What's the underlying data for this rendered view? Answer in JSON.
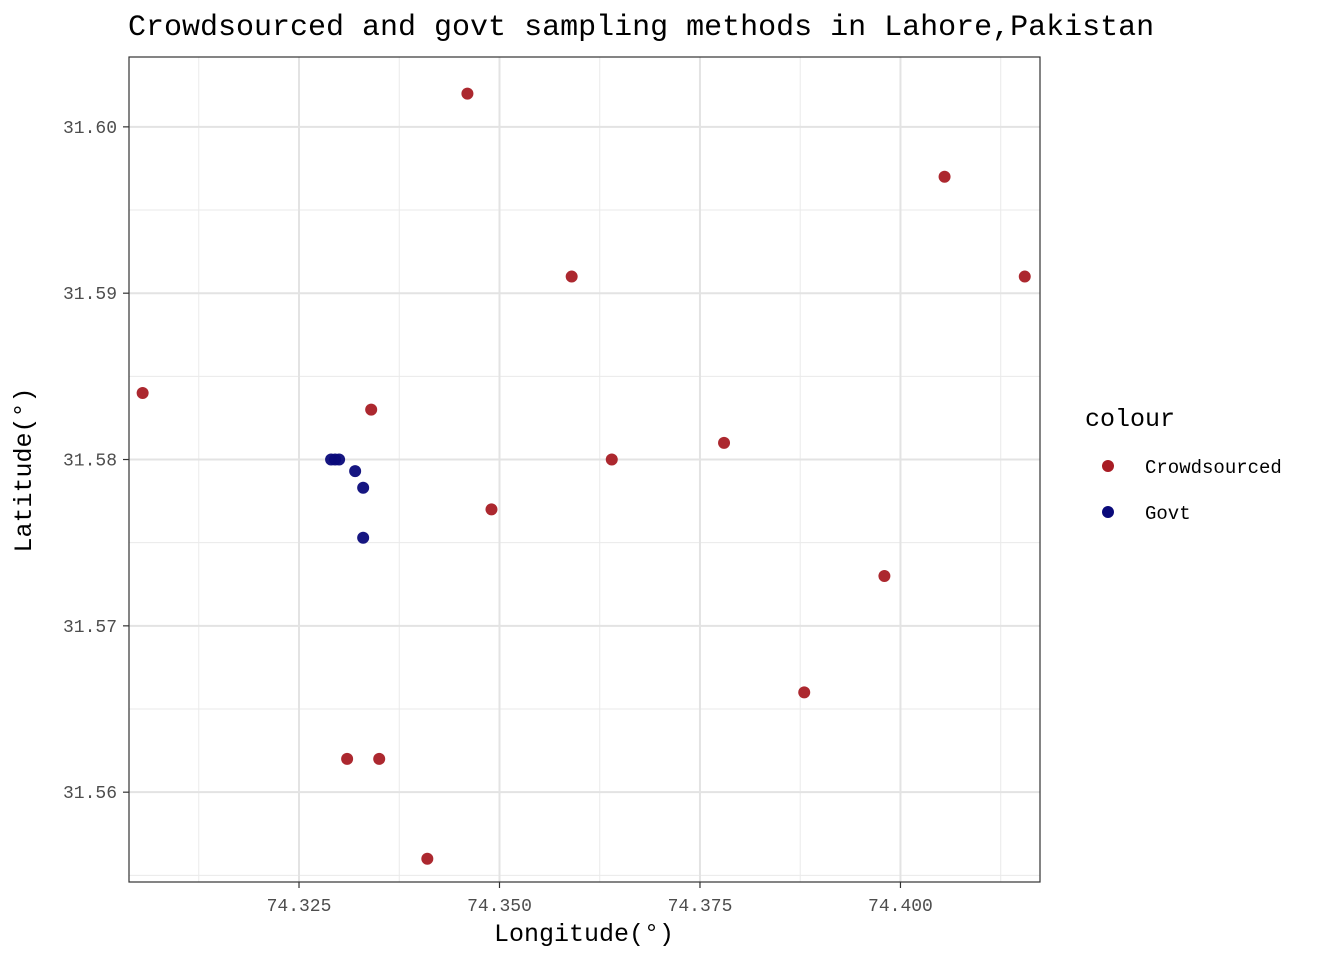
{
  "chart_data": {
    "type": "scatter",
    "title": "Crowdsourced and govt sampling methods in Lahore,Pakistan",
    "xlabel": "Longitude(°)",
    "ylabel": "Latitude(°)",
    "xlim": [
      74.3038,
      74.4174
    ],
    "ylim": [
      31.5546,
      31.6042
    ],
    "x_ticks": [
      {
        "value": 74.325,
        "label": "74.325"
      },
      {
        "value": 74.35,
        "label": "74.350"
      },
      {
        "value": 74.375,
        "label": "74.375"
      },
      {
        "value": 74.4,
        "label": "74.400"
      }
    ],
    "y_ticks": [
      {
        "value": 31.56,
        "label": "31.56"
      },
      {
        "value": 31.57,
        "label": "31.57"
      },
      {
        "value": 31.58,
        "label": "31.58"
      },
      {
        "value": 31.59,
        "label": "31.59"
      },
      {
        "value": 31.6,
        "label": "31.60"
      }
    ],
    "grid": true,
    "legend": {
      "title": "colour",
      "placement": "right"
    },
    "series": [
      {
        "name": "Crowdsourced",
        "color": "#a81c24",
        "points": [
          {
            "x": 74.3055,
            "y": 31.584
          },
          {
            "x": 74.346,
            "y": 31.602
          },
          {
            "x": 74.359,
            "y": 31.591
          },
          {
            "x": 74.4055,
            "y": 31.597
          },
          {
            "x": 74.4155,
            "y": 31.591
          },
          {
            "x": 74.334,
            "y": 31.583
          },
          {
            "x": 74.378,
            "y": 31.581
          },
          {
            "x": 74.364,
            "y": 31.58
          },
          {
            "x": 74.349,
            "y": 31.577
          },
          {
            "x": 74.398,
            "y": 31.573
          },
          {
            "x": 74.388,
            "y": 31.566
          },
          {
            "x": 74.331,
            "y": 31.562
          },
          {
            "x": 74.335,
            "y": 31.562
          },
          {
            "x": 74.341,
            "y": 31.556
          }
        ]
      },
      {
        "name": "Govt",
        "color": "#0a0a7a",
        "points": [
          {
            "x": 74.329,
            "y": 31.58
          },
          {
            "x": 74.3295,
            "y": 31.58
          },
          {
            "x": 74.33,
            "y": 31.58
          },
          {
            "x": 74.332,
            "y": 31.5793
          },
          {
            "x": 74.333,
            "y": 31.5783
          },
          {
            "x": 74.333,
            "y": 31.5753
          }
        ]
      }
    ]
  }
}
